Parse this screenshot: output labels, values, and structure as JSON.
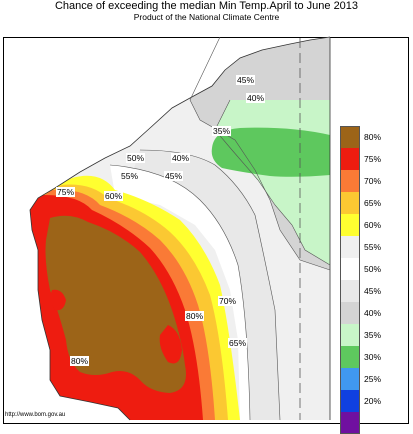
{
  "title": "Chance of exceeding the median Min Temp.April to June 2013",
  "subtitle": "Product of the National Climate Centre",
  "credit": "http://www.bom.gov.au",
  "legend": [
    {
      "label": "80%",
      "color": "#9c6418"
    },
    {
      "label": "75%",
      "color": "#ee1c10"
    },
    {
      "label": "70%",
      "color": "#fa7a36"
    },
    {
      "label": "65%",
      "color": "#fbc832"
    },
    {
      "label": "60%",
      "color": "#ffff30"
    },
    {
      "label": "55%",
      "color": "#f0f0f0"
    },
    {
      "label": "50%",
      "color": "#ffffff"
    },
    {
      "label": "45%",
      "color": "#e8e8e8"
    },
    {
      "label": "40%",
      "color": "#d4d4d4"
    },
    {
      "label": "35%",
      "color": "#c8f5c8"
    },
    {
      "label": "30%",
      "color": "#5ec85e"
    },
    {
      "label": "25%",
      "color": "#4098f0"
    },
    {
      "label": "20%",
      "color": "#1040e0"
    },
    {
      "label": "",
      "color": "#7010a0"
    }
  ],
  "contour_labels": [
    {
      "text": "45%"
    },
    {
      "text": "40%"
    },
    {
      "text": "35%"
    },
    {
      "text": "50%"
    },
    {
      "text": "40%"
    },
    {
      "text": "55%"
    },
    {
      "text": "45%"
    },
    {
      "text": "75%"
    },
    {
      "text": "60%"
    },
    {
      "text": "70%"
    },
    {
      "text": "80%"
    },
    {
      "text": "65%"
    },
    {
      "text": "80%"
    }
  ]
}
